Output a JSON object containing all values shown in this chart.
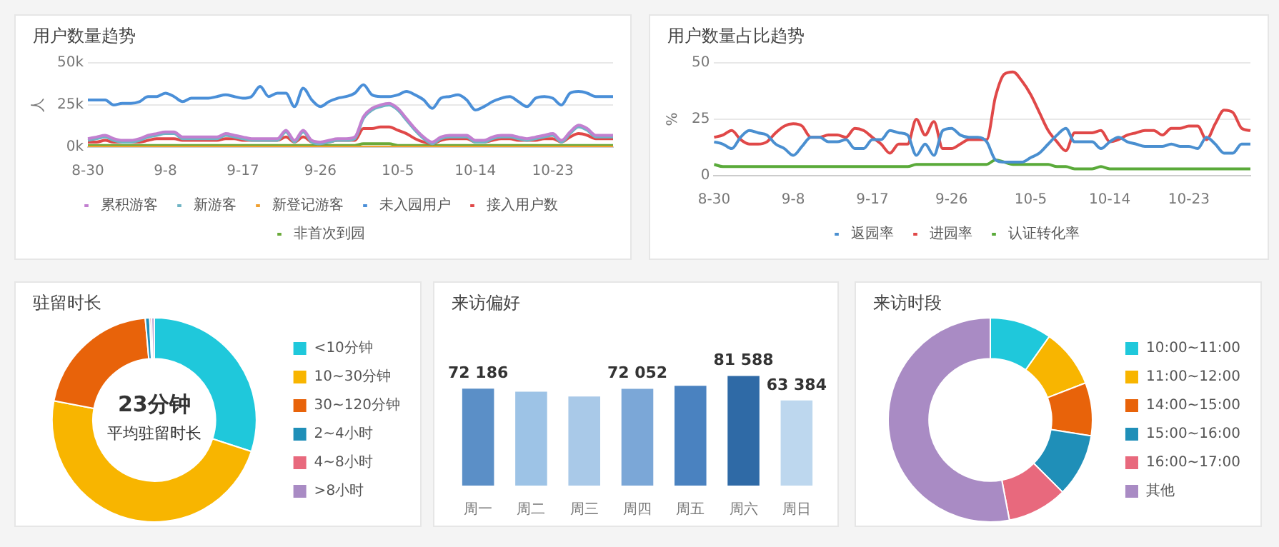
{
  "chart_data": [
    {
      "type": "line",
      "title": "用户数量趋势",
      "ylabel": "人",
      "grid": "y",
      "legend": "bottom",
      "marker": "none",
      "ylim": [
        0,
        50000
      ],
      "yticks": [
        {
          "value": 0,
          "label": "0k"
        },
        {
          "value": 25000,
          "label": "25k"
        },
        {
          "value": 50000,
          "label": "50k"
        }
      ],
      "categories": [
        "8-30",
        null,
        null,
        null,
        null,
        null,
        null,
        null,
        null,
        "9-8",
        null,
        null,
        null,
        null,
        null,
        null,
        null,
        null,
        "9-17",
        null,
        null,
        null,
        null,
        null,
        null,
        null,
        null,
        "9-26",
        null,
        null,
        null,
        null,
        null,
        null,
        null,
        null,
        "10-5",
        null,
        null,
        null,
        null,
        null,
        null,
        null,
        null,
        "10-14",
        null,
        null,
        null,
        null,
        null,
        null,
        null,
        null,
        "10-23",
        null,
        null,
        null,
        null,
        null,
        null,
        null
      ],
      "series": [
        {
          "name": "累积游客",
          "color": "#c27fd0",
          "values": [
            5000,
            6000,
            7000,
            5000,
            4000,
            4000,
            5000,
            7000,
            8000,
            9000,
            9000,
            6000,
            6000,
            6000,
            6000,
            6000,
            8000,
            7000,
            6000,
            5000,
            5000,
            5000,
            5000,
            10000,
            4000,
            10000,
            4000,
            3000,
            4000,
            5000,
            5000,
            6000,
            18000,
            23000,
            25000,
            26000,
            23000,
            17000,
            11000,
            6000,
            3000,
            6000,
            7000,
            7000,
            7000,
            4000,
            4000,
            6000,
            7000,
            7000,
            6000,
            5000,
            6000,
            7000,
            8000,
            4000,
            9000,
            13000,
            11000,
            7000,
            7000,
            7000
          ]
        },
        {
          "name": "新游客",
          "color": "#6fb4c4",
          "values": [
            4000,
            5000,
            6000,
            4000,
            3000,
            3000,
            4000,
            6000,
            7000,
            8000,
            8000,
            5000,
            5000,
            5000,
            5000,
            5000,
            7000,
            6000,
            5000,
            4000,
            4000,
            4000,
            4000,
            9000,
            3000,
            9000,
            3000,
            2000,
            3000,
            4000,
            4000,
            5000,
            17000,
            22000,
            24000,
            25000,
            22000,
            16000,
            10000,
            5000,
            2000,
            5000,
            6000,
            6000,
            6000,
            3000,
            3000,
            5000,
            6000,
            6000,
            5000,
            4000,
            5000,
            6000,
            7000,
            3000,
            8000,
            12000,
            10000,
            6000,
            6000,
            6000
          ]
        },
        {
          "name": "新登记游客",
          "color": "#f0a030",
          "values": [
            0,
            0,
            0,
            0,
            0,
            0,
            0,
            0,
            0,
            0,
            0,
            0,
            0,
            0,
            0,
            0,
            0,
            0,
            0,
            0,
            0,
            0,
            0,
            0,
            0,
            0,
            0,
            0,
            0,
            0,
            0,
            0,
            0,
            0,
            0,
            0,
            0,
            0,
            0,
            0,
            0,
            0,
            0,
            0,
            0,
            0,
            0,
            0,
            0,
            0,
            0,
            0,
            0,
            0,
            0,
            0,
            0,
            0,
            0,
            0,
            0,
            0
          ]
        },
        {
          "name": "未入园用户",
          "color": "#4a8fd8",
          "values": [
            28000,
            28000,
            28000,
            25000,
            26000,
            26000,
            27000,
            30000,
            30000,
            32000,
            30000,
            27000,
            29000,
            29000,
            29000,
            30000,
            31000,
            30000,
            29000,
            30000,
            36000,
            30000,
            32000,
            32000,
            24000,
            35000,
            28000,
            24000,
            27000,
            29000,
            30000,
            32000,
            37000,
            31000,
            30000,
            30000,
            31000,
            33000,
            31000,
            28000,
            23000,
            29000,
            30000,
            31000,
            28000,
            22000,
            24000,
            27000,
            29000,
            30000,
            27000,
            24000,
            29000,
            30000,
            29000,
            25000,
            32000,
            33000,
            32000,
            30000,
            30000,
            30000
          ]
        },
        {
          "name": "接入用户数",
          "color": "#e04848",
          "values": [
            3000,
            3000,
            4000,
            3000,
            3000,
            3000,
            3000,
            4000,
            5000,
            5000,
            5000,
            4000,
            4000,
            4000,
            4000,
            4000,
            5000,
            5000,
            4000,
            4000,
            4000,
            4000,
            4000,
            6000,
            3000,
            6000,
            3000,
            2000,
            3000,
            4000,
            4000,
            4000,
            11000,
            11000,
            12000,
            12000,
            10000,
            8000,
            5000,
            3000,
            2000,
            4000,
            5000,
            5000,
            5000,
            3000,
            3000,
            4000,
            5000,
            5000,
            4000,
            4000,
            4000,
            5000,
            5000,
            3000,
            6000,
            8000,
            7000,
            5000,
            5000,
            5000
          ]
        },
        {
          "name": "非首次到园",
          "color": "#6aaa3a",
          "values": [
            1000,
            1000,
            1000,
            1000,
            1000,
            1000,
            1000,
            1000,
            1000,
            1000,
            1000,
            1000,
            1000,
            1000,
            1000,
            1000,
            1000,
            1000,
            1000,
            1000,
            1000,
            1000,
            1000,
            1000,
            1000,
            1000,
            1000,
            1000,
            1000,
            1000,
            1000,
            1000,
            2000,
            2000,
            2000,
            2000,
            1000,
            1000,
            1000,
            1000,
            1000,
            1000,
            1000,
            1000,
            1000,
            1000,
            1000,
            1000,
            1000,
            1000,
            1000,
            1000,
            1000,
            1000,
            1000,
            1000,
            1000,
            1000,
            1000,
            1000,
            1000,
            1000
          ]
        }
      ]
    },
    {
      "type": "line",
      "title": "用户数量占比趋势",
      "ylabel": "%",
      "grid": "y",
      "legend": "bottom",
      "marker": "none",
      "ylim": [
        0,
        50
      ],
      "yticks": [
        0,
        25,
        50
      ],
      "categories": [
        "8-30",
        null,
        null,
        null,
        null,
        null,
        null,
        null,
        null,
        "9-8",
        null,
        null,
        null,
        null,
        null,
        null,
        null,
        null,
        "9-17",
        null,
        null,
        null,
        null,
        null,
        null,
        null,
        null,
        "9-26",
        null,
        null,
        null,
        null,
        null,
        null,
        null,
        null,
        "10-5",
        null,
        null,
        null,
        null,
        null,
        null,
        null,
        null,
        "10-14",
        null,
        null,
        null,
        null,
        null,
        null,
        null,
        null,
        "10-23",
        null,
        null,
        null,
        null,
        null,
        null,
        null
      ],
      "series": [
        {
          "name": "返园率",
          "color": "#4a8fd0",
          "values": [
            15,
            14,
            12,
            17,
            20,
            19,
            18,
            14,
            12,
            9,
            13,
            17,
            17,
            15,
            15,
            16,
            12,
            12,
            16,
            16,
            20,
            19,
            18,
            9,
            14,
            9,
            20,
            21,
            18,
            17,
            17,
            15,
            7,
            6,
            6,
            6,
            8,
            10,
            14,
            18,
            21,
            15,
            15,
            15,
            12,
            15,
            17,
            15,
            14,
            13,
            13,
            13,
            14,
            13,
            13,
            12,
            17,
            14,
            10,
            10,
            14,
            14
          ]
        },
        {
          "name": "进园率",
          "color": "#e04848",
          "values": [
            17,
            18,
            20,
            16,
            14,
            14,
            15,
            19,
            22,
            23,
            22,
            17,
            17,
            18,
            18,
            17,
            21,
            20,
            17,
            14,
            10,
            14,
            14,
            25,
            18,
            24,
            12,
            12,
            14,
            16,
            16,
            16,
            35,
            45,
            46,
            42,
            36,
            28,
            20,
            15,
            11,
            19,
            19,
            19,
            20,
            15,
            16,
            18,
            19,
            20,
            20,
            18,
            21,
            21,
            22,
            22,
            16,
            23,
            29,
            28,
            21,
            20
          ]
        },
        {
          "name": "认证转化率",
          "color": "#5aaa3a",
          "values": [
            5,
            4,
            4,
            4,
            4,
            4,
            4,
            4,
            4,
            4,
            4,
            4,
            4,
            4,
            4,
            4,
            4,
            4,
            4,
            4,
            4,
            4,
            4,
            5,
            5,
            5,
            5,
            5,
            5,
            5,
            5,
            5,
            7,
            6,
            5,
            5,
            5,
            5,
            5,
            4,
            4,
            3,
            3,
            3,
            4,
            3,
            3,
            3,
            3,
            3,
            3,
            3,
            3,
            3,
            3,
            3,
            3,
            3,
            3,
            3,
            3,
            3
          ]
        }
      ]
    },
    {
      "type": "donut",
      "title": "驻留时长",
      "legend": "right",
      "annotations": [
        "23分钟",
        "平均驻留时长"
      ],
      "categories": [
        "<10分钟",
        "10~30分钟",
        "30~120分钟",
        "2~4小时",
        "4~8小时",
        ">8小时"
      ],
      "values": [
        30,
        48,
        20.6,
        0.7,
        0.3,
        0.4
      ],
      "colors": [
        "#1fc8db",
        "#f8b500",
        "#e8630a",
        "#1f8fb8",
        "#e8697d",
        "#a98bc4"
      ]
    },
    {
      "type": "bar",
      "title": "来访偏好",
      "tick_labels": "x",
      "categories": [
        "周一",
        "周二",
        "周三",
        "周四",
        "周五",
        "周六",
        "周日"
      ],
      "values": [
        72186,
        69900,
        66400,
        72052,
        74400,
        81588,
        63384
      ],
      "value_labels": [
        "72 186",
        null,
        null,
        "72 052",
        null,
        "81 588",
        "63 384"
      ],
      "colors": [
        "#5b8fc7",
        "#9dc3e6",
        "#a9c9e8",
        "#7ba7d7",
        "#4a82c0",
        "#2f6aa6",
        "#bdd7ee"
      ]
    },
    {
      "type": "donut",
      "title": "来访时段",
      "legend": "right",
      "categories": [
        "10:00~11:00",
        "11:00~12:00",
        "14:00~15:00",
        "15:00~16:00",
        "16:00~17:00",
        "其他"
      ],
      "values": [
        9.8,
        9.3,
        8.4,
        10,
        9.5,
        53
      ],
      "colors": [
        "#1fc8db",
        "#f8b500",
        "#e8630a",
        "#1f8fb8",
        "#e8697d",
        "#a98bc4"
      ]
    }
  ]
}
